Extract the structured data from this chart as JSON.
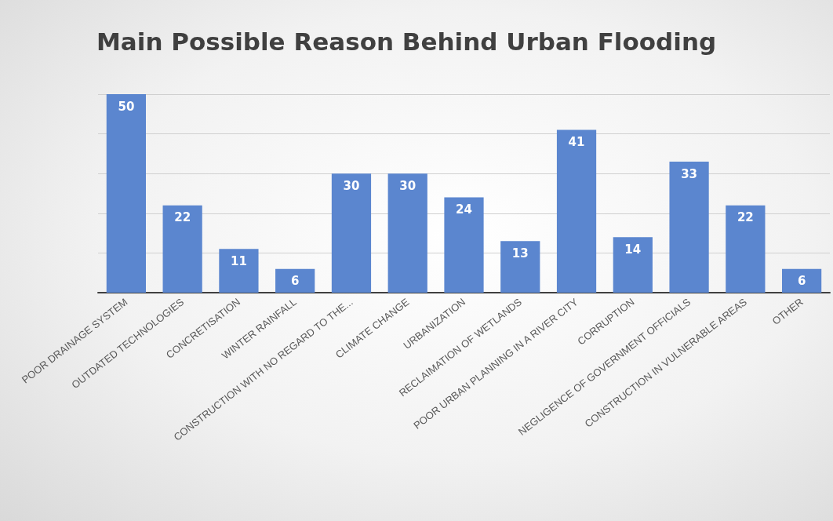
{
  "chart_data": {
    "type": "bar",
    "title": "Main Possible Reason Behind Urban Flooding",
    "categories": [
      "POOR DRAINAGE SYSTEM",
      "OUTDATED TECHNOLOGIES",
      "CONCRETISATION",
      "WINTER RAINFALL",
      "CONSTRUCTION WITH NO REGARD TO THE...",
      "CLIMATE CHANGE",
      "URBANIZATION",
      "RECLAIMATION OF WETLANDS",
      "POOR URBAN PLANNING IN A RIVER CITY",
      "CORRUPTION",
      "NEGLIGENCE OF GOVERNMENT OFFICIALS",
      "CONSTRUCTION IN VULNERABLE AREAS",
      "OTHER"
    ],
    "values": [
      50,
      22,
      11,
      6,
      30,
      30,
      24,
      13,
      41,
      14,
      33,
      22,
      6
    ],
    "color": "#5b86cf",
    "data_labels": true,
    "ylim": [
      0,
      50
    ],
    "yticks": [
      {
        "value": 0,
        "label": null
      },
      {
        "value": 10,
        "label": null
      },
      {
        "value": 20,
        "label": null
      },
      {
        "value": 30,
        "label": null
      },
      {
        "value": 40,
        "label": null
      },
      {
        "value": 50,
        "label": null
      }
    ],
    "grid": "y",
    "tick_labels": "x"
  }
}
